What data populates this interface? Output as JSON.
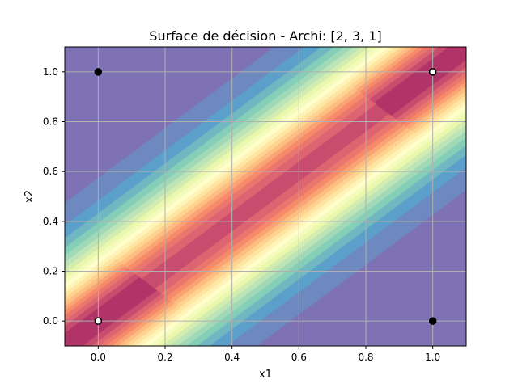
{
  "chart_data": {
    "type": "heatmap",
    "title": "Surface de décision - Archi: [2, 3, 1]",
    "xlabel": "x1",
    "ylabel": "x2",
    "xlim": [
      -0.1,
      1.1
    ],
    "ylim": [
      -0.1,
      1.1
    ],
    "xticks": [
      0.0,
      0.2,
      0.4,
      0.6,
      0.8,
      1.0
    ],
    "yticks": [
      0.0,
      0.2,
      0.4,
      0.6,
      0.8,
      1.0
    ],
    "xtick_labels": [
      "0.0",
      "0.2",
      "0.4",
      "0.6",
      "0.8",
      "1.0"
    ],
    "ytick_labels": [
      "0.0",
      "0.2",
      "0.4",
      "0.6",
      "0.8",
      "1.0"
    ],
    "grid": true,
    "colormap": "Spectral",
    "points": [
      {
        "x": 0,
        "y": 0,
        "class": 0,
        "color": "#ffffff"
      },
      {
        "x": 0,
        "y": 1,
        "class": 1,
        "color": "#000000"
      },
      {
        "x": 1,
        "y": 0,
        "class": 1,
        "color": "#000000"
      },
      {
        "x": 1,
        "y": 1,
        "class": 0,
        "color": "#ffffff"
      }
    ]
  }
}
